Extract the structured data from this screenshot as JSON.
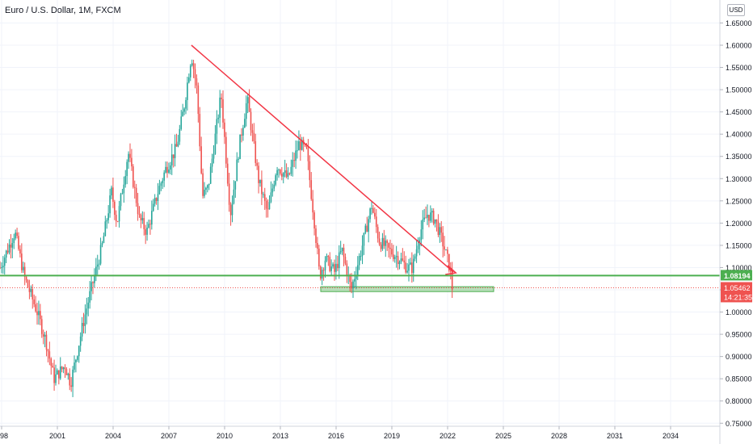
{
  "header": {
    "title": "Euro / U.S. Dollar, 1M, FXCM",
    "currency_button": "USD"
  },
  "chart_data": {
    "type": "candlestick",
    "ylim": [
      0.75,
      1.67
    ],
    "y_ticks": [
      "1.65000",
      "1.60000",
      "1.55000",
      "1.50000",
      "1.45000",
      "1.40000",
      "1.35000",
      "1.30000",
      "1.25000",
      "1.20000",
      "1.15000",
      "1.10000",
      "1.05000",
      "1.00000",
      "0.95000",
      "0.90000",
      "0.85000",
      "0.80000",
      "0.75000"
    ],
    "x_ticks": [
      "98",
      "2001",
      "2004",
      "2007",
      "2010",
      "2013",
      "2016",
      "2019",
      "2022",
      "2025",
      "2028",
      "2031",
      "2034"
    ],
    "price_labels": {
      "support_level": "1.08194",
      "last_price": "1.05462",
      "countdown": "14:21:35"
    },
    "colors": {
      "up": "#26a69a",
      "down": "#ef5350",
      "trendline": "#f23645",
      "support": "#4caf50",
      "zone_fill": "#a5d6a7",
      "last_price": "#ef5350"
    },
    "monthly_close_anchors": [
      [
        1998.0,
        1.1
      ],
      [
        1998.8,
        1.18
      ],
      [
        1999.3,
        1.08
      ],
      [
        2000.0,
        1.0
      ],
      [
        2000.5,
        0.93
      ],
      [
        2000.9,
        0.85
      ],
      [
        2001.5,
        0.88
      ],
      [
        2001.8,
        0.84
      ],
      [
        2002.5,
        0.98
      ],
      [
        2002.9,
        1.05
      ],
      [
        2003.5,
        1.15
      ],
      [
        2004.0,
        1.27
      ],
      [
        2004.3,
        1.2
      ],
      [
        2004.9,
        1.36
      ],
      [
        2005.5,
        1.21
      ],
      [
        2005.9,
        1.18
      ],
      [
        2006.5,
        1.27
      ],
      [
        2006.9,
        1.32
      ],
      [
        2007.5,
        1.37
      ],
      [
        2007.9,
        1.46
      ],
      [
        2008.3,
        1.58
      ],
      [
        2008.6,
        1.5
      ],
      [
        2008.9,
        1.26
      ],
      [
        2009.2,
        1.28
      ],
      [
        2009.9,
        1.49
      ],
      [
        2010.4,
        1.22
      ],
      [
        2010.9,
        1.38
      ],
      [
        2011.3,
        1.48
      ],
      [
        2011.9,
        1.3
      ],
      [
        2012.4,
        1.22
      ],
      [
        2012.9,
        1.33
      ],
      [
        2013.5,
        1.3
      ],
      [
        2014.1,
        1.38
      ],
      [
        2014.5,
        1.36
      ],
      [
        2014.9,
        1.21
      ],
      [
        2015.2,
        1.08
      ],
      [
        2015.5,
        1.12
      ],
      [
        2016.0,
        1.09
      ],
      [
        2016.4,
        1.14
      ],
      [
        2016.9,
        1.05
      ],
      [
        2017.5,
        1.15
      ],
      [
        2018.0,
        1.24
      ],
      [
        2018.4,
        1.16
      ],
      [
        2018.9,
        1.14
      ],
      [
        2019.5,
        1.12
      ],
      [
        2019.9,
        1.1
      ],
      [
        2020.2,
        1.1
      ],
      [
        2020.6,
        1.18
      ],
      [
        2021.0,
        1.22
      ],
      [
        2021.4,
        1.21
      ],
      [
        2021.8,
        1.16
      ],
      [
        2022.0,
        1.13
      ],
      [
        2022.2,
        1.1
      ],
      [
        2022.33,
        1.055
      ]
    ],
    "annotations": {
      "trendline": {
        "from": [
          2008.3,
          1.6
        ],
        "to": [
          2022.4,
          1.09
        ]
      },
      "support_line": {
        "price": 1.0819
      },
      "support_zone": {
        "x": [
          2015.0,
          2024.6
        ],
        "y": [
          1.046,
          1.057
        ]
      }
    },
    "grid": true
  }
}
